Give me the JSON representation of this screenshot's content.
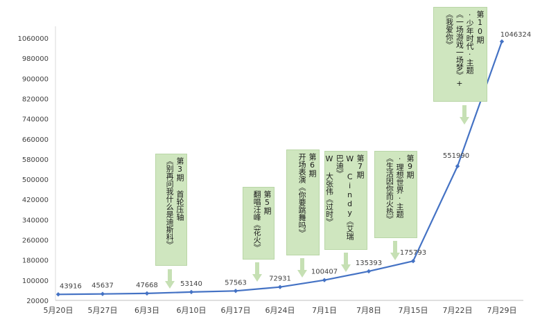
{
  "chart_data": {
    "type": "line",
    "title": "",
    "xlabel": "",
    "ylabel": "",
    "categories": [
      "5月20日",
      "5月27日",
      "6月3日",
      "6月10日",
      "6月17日",
      "6月24日",
      "7月1日",
      "7月8日",
      "7月15日",
      "7月22日",
      "7月29日"
    ],
    "values": [
      43916,
      45637,
      47668,
      53140,
      57563,
      72931,
      100407,
      135393,
      175793,
      551990,
      1046324
    ],
    "data_labels": [
      "43916",
      "45637",
      "47668",
      "53140",
      "57563",
      "72931",
      "100407",
      "135393",
      "175793",
      "551990",
      "1046324"
    ],
    "ylim": [
      20000,
      1100000
    ],
    "yticks": [
      "20000",
      "100000",
      "180000",
      "260000",
      "340000",
      "420000",
      "500000",
      "580000",
      "660000",
      "740000",
      "820000",
      "900000",
      "980000",
      "1060000"
    ],
    "grid": false,
    "legend": "none",
    "line_color": "#4472c4",
    "axis_color": "#bfbfbf",
    "annotation_color": "#cfe6bf"
  },
  "annotations": [
    {
      "id": "ep3",
      "lines": [
        "第3期 首轮压轴",
        "《别再问我什么是迪斯科》"
      ]
    },
    {
      "id": "ep5",
      "lines": [
        "第5期",
        "翻唱汪峰《花火》"
      ]
    },
    {
      "id": "ep6",
      "lines": [
        "第6期",
        "开场表演《你要跳舞吗》"
      ]
    },
    {
      "id": "ep7",
      "lines": [
        "第7期",
        "W Cindy《艾瑞巴迪》",
        "W 大张伟《过时》"
      ]
    },
    {
      "id": "ep9",
      "lines": [
        "第9期",
        "·理想世界·主题",
        "《生活因你而火热》"
      ]
    },
    {
      "id": "ep10",
      "lines": [
        "第10期",
        "·少年时代·主题",
        "《一场游戏一场梦》+",
        "《我爱你》"
      ]
    }
  ]
}
